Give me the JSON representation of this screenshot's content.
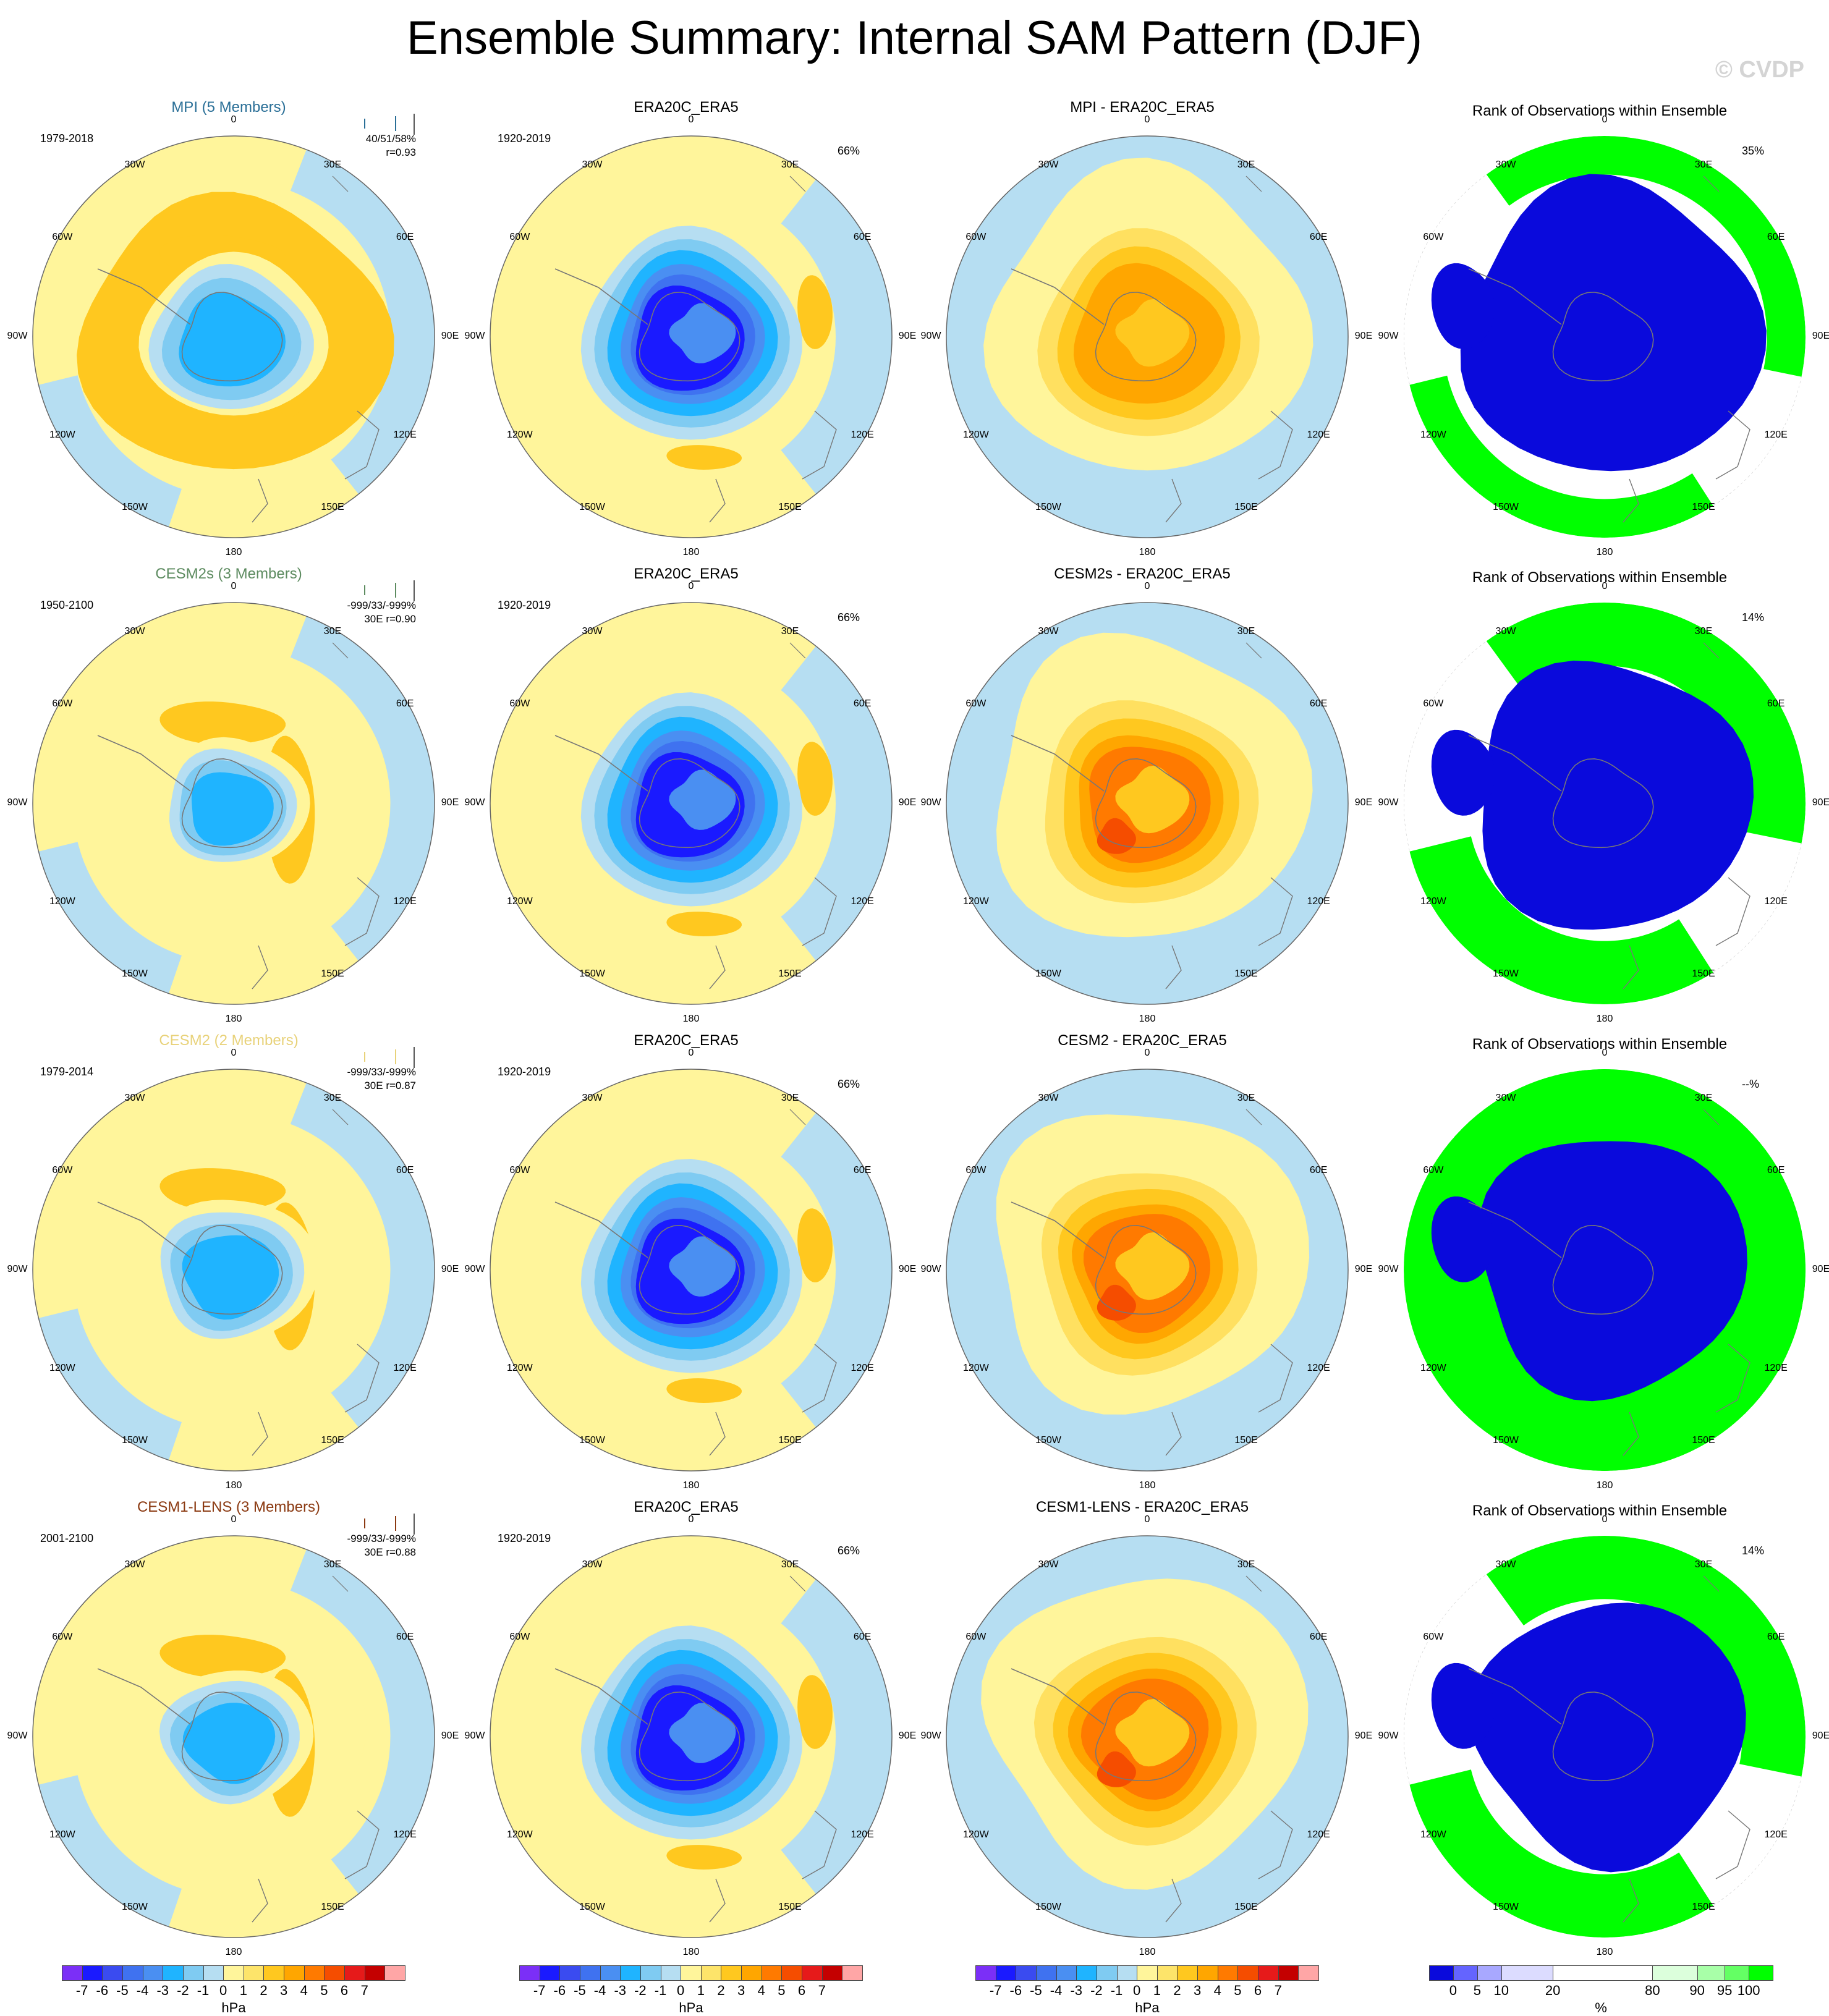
{
  "title": "Ensemble Summary: Internal SAM Pattern (DJF)",
  "watermark": "© CVDP",
  "lon_labels": [
    "0",
    "30E",
    "60E",
    "90E",
    "120E",
    "150E",
    "180",
    "150W",
    "120W",
    "90W",
    "60W",
    "30W"
  ],
  "rows": [
    {
      "model": {
        "title": "MPI (5 Members)",
        "title_color": "#2a6f97",
        "period": "1979-2018",
        "stats_line1": "40/51/58%",
        "stats_line2": "r=0.93"
      },
      "obs": {
        "title": "ERA20C_ERA5",
        "period": "1920-2019",
        "pct": "66%"
      },
      "diff": {
        "title": "MPI - ERA20C_ERA5"
      },
      "rank": {
        "title": "Rank of Observations within Ensemble",
        "pct": "35%"
      }
    },
    {
      "model": {
        "title": "CESM2s (3 Members)",
        "title_color": "#5e8c61",
        "period": "1950-2100",
        "stats_line1": "-999/33/-999%",
        "stats_line2": "30E  r=0.90"
      },
      "obs": {
        "title": "ERA20C_ERA5",
        "period": "1920-2019",
        "pct": "66%"
      },
      "diff": {
        "title": "CESM2s - ERA20C_ERA5"
      },
      "rank": {
        "title": "Rank of Observations within Ensemble",
        "pct": "14%"
      }
    },
    {
      "model": {
        "title": "CESM2 (2 Members)",
        "title_color": "#e8d27a",
        "period": "1979-2014",
        "stats_line1": "-999/33/-999%",
        "stats_line2": "30E  r=0.87"
      },
      "obs": {
        "title": "ERA20C_ERA5",
        "period": "1920-2019",
        "pct": "66%"
      },
      "diff": {
        "title": "CESM2 - ERA20C_ERA5"
      },
      "rank": {
        "title": "Rank of Observations within Ensemble",
        "pct": "--%"
      }
    },
    {
      "model": {
        "title": "CESM1-LENS (3 Members)",
        "title_color": "#8b3a12",
        "period": "2001-2100",
        "stats_line1": "-999/33/-999%",
        "stats_line2": "30E  r=0.88"
      },
      "obs": {
        "title": "ERA20C_ERA5",
        "period": "1920-2019",
        "pct": "66%"
      },
      "diff": {
        "title": "CESM1-LENS - ERA20C_ERA5"
      },
      "rank": {
        "title": "Rank of Observations within Ensemble",
        "pct": "14%"
      }
    }
  ],
  "hpa_colorbar": {
    "labels": [
      "-7",
      "-6",
      "-5",
      "-4",
      "-3",
      "-2",
      "-1",
      "0",
      "1",
      "2",
      "3",
      "4",
      "5",
      "6",
      "7"
    ],
    "colors": [
      "#7b2ff7",
      "#1a1aff",
      "#3a4bf0",
      "#3f72f0",
      "#4a8ff2",
      "#1fb4ff",
      "#7fcbf2",
      "#b6def2",
      "#fff59b",
      "#fde46a",
      "#ffc81f",
      "#ffa600",
      "#ff7a00",
      "#f54d00",
      "#e61a1a",
      "#c40000",
      "#ffa6a6"
    ],
    "unit": "hPa"
  },
  "rank_colorbar": {
    "labels": [
      "0",
      "5",
      "10",
      "20",
      "80",
      "90",
      "95",
      "100"
    ],
    "colors": [
      "#0a0adc",
      "#6464ff",
      "#a8a8ff",
      "#dcdcff",
      "#ffffff",
      "#dcffdc",
      "#a8ffa8",
      "#64ff64",
      "#00ff00"
    ],
    "unit": "%"
  }
}
